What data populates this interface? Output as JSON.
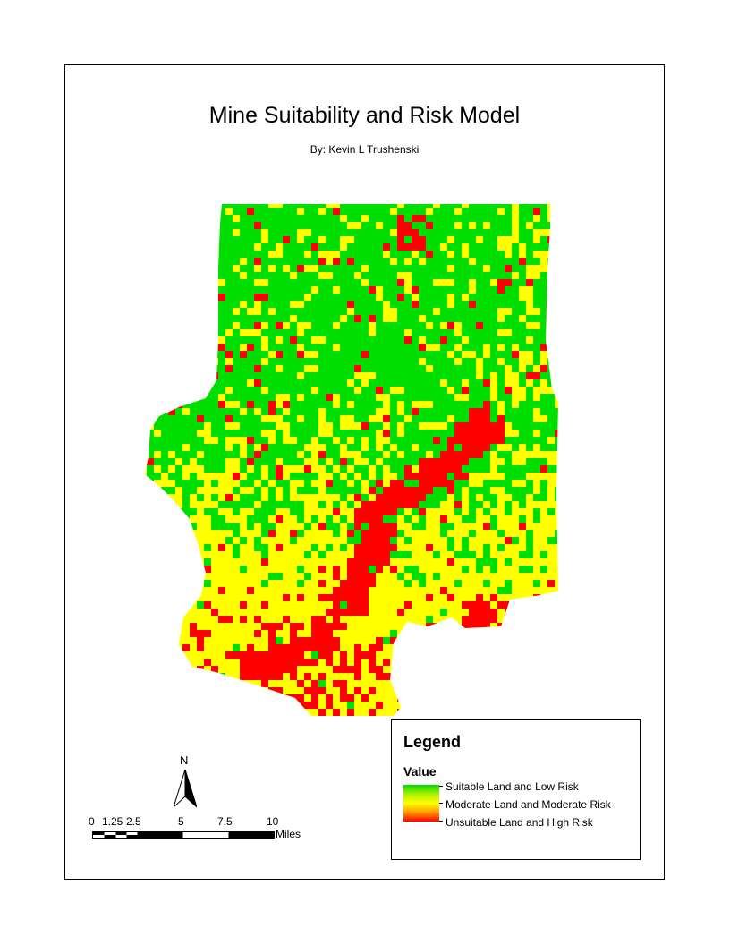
{
  "map": {
    "title": "Mine Suitability and Risk Model",
    "author": "By: Kevin L Trushenski"
  },
  "north_arrow": {
    "label": "N"
  },
  "scale_bar": {
    "ticks": [
      "0",
      "1.25",
      "2.5",
      "5",
      "7.5",
      "10"
    ],
    "unit": "Miles"
  },
  "legend": {
    "title": "Legend",
    "field": "Value",
    "items": [
      {
        "label": "Suitable Land and Low Risk",
        "color": "#00dd00"
      },
      {
        "label": "Moderate Land and Moderate Risk",
        "color": "#ffff00"
      },
      {
        "label": "Unsuitable Land and High Risk",
        "color": "#ff0000"
      }
    ]
  },
  "colors": {
    "suitable": "#00dd00",
    "moderate": "#ffff00",
    "unsuitable": "#ff0000",
    "edge": "#ff9900"
  }
}
